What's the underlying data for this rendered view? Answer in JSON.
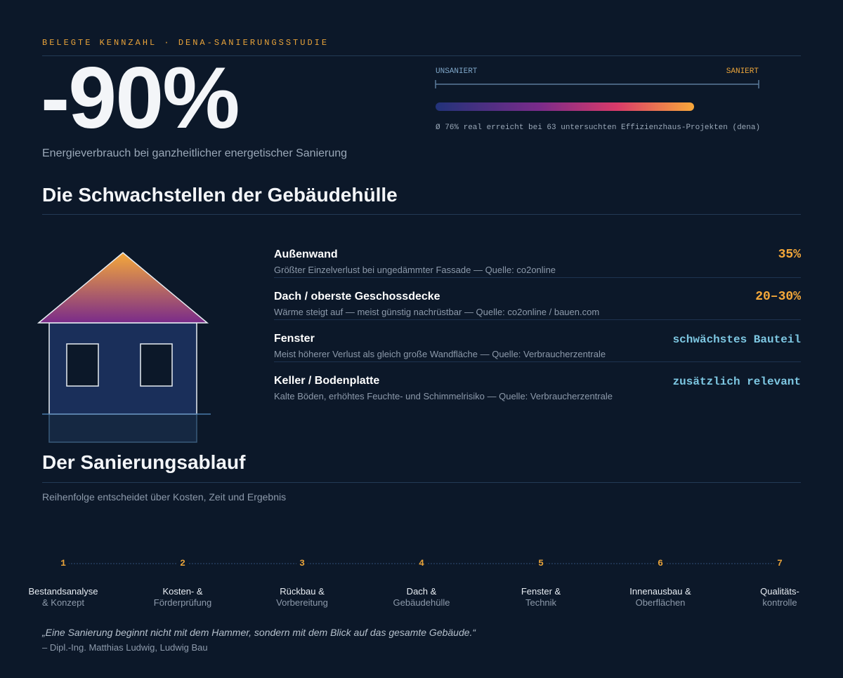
{
  "header": {
    "kicker": "BELEGTE KENNZAHL · DENA-SANIERUNGSSTUDIE",
    "figure": "-90%",
    "figure_caption": "Energieverbrauch bei ganzheitlicher energetischer Sanierung",
    "scale_left": "UNSANIERT",
    "scale_right": "SANIERT",
    "scale_note": "Ø 76% real erreicht bei 63 untersuchten Effizienzhaus-Projekten (dena)"
  },
  "weak_points": {
    "title": "Die Schwachstellen der Gebäudehülle",
    "items": [
      {
        "title": "Außenwand",
        "description": "Größter Einzelverlust bei ungedämmter Fassade — Quelle: co2online",
        "value": "35%",
        "color": "#f5a83a"
      },
      {
        "title": "Dach / oberste Geschossdecke",
        "description": "Wärme steigt auf — meist günstig nachrüstbar — Quelle: co2online / bauen.com",
        "value": "20–30%",
        "color": "#f5a83a"
      },
      {
        "title": "Fenster",
        "description": "Meist höherer Verlust als gleich große Wandfläche — Quelle: Verbraucherzentrale",
        "value": "schwächstes Bauteil",
        "color": "#7ec8e3"
      },
      {
        "title": "Keller / Bodenplatte",
        "description": "Kalte Böden, erhöhtes Feuchte- und Schimmelrisiko — Quelle: Verbraucherzentrale",
        "value": "zusätzlich relevant",
        "color": "#7ec8e3"
      }
    ]
  },
  "process": {
    "title": "Der Sanierungsablauf",
    "subtitle": "Reihenfolge entscheidet über Kosten, Zeit und Ergebnis",
    "steps": [
      {
        "number": "1",
        "title": "Bestandsanalyse",
        "subtitle": "& Konzept"
      },
      {
        "number": "2",
        "title": "Kosten- &",
        "subtitle": "Förderprüfung"
      },
      {
        "number": "3",
        "title": "Rückbau &",
        "subtitle": "Vorbereitung"
      },
      {
        "number": "4",
        "title": "Dach &",
        "subtitle": "Gebäudehülle"
      },
      {
        "number": "5",
        "title": "Fenster &",
        "subtitle": "Technik"
      },
      {
        "number": "6",
        "title": "Innenausbau &",
        "subtitle": "Oberflächen"
      },
      {
        "number": "7",
        "title": "Qualitäts-",
        "subtitle": "kontrolle"
      }
    ]
  },
  "quote": {
    "text": "„Eine Sanierung beginnt nicht mit dem Hammer, sondern mit dem Blick auf das gesamte Gebäude.“",
    "author": "– Dipl.-Ing. Matthias Ludwig, Ludwig Bau"
  }
}
